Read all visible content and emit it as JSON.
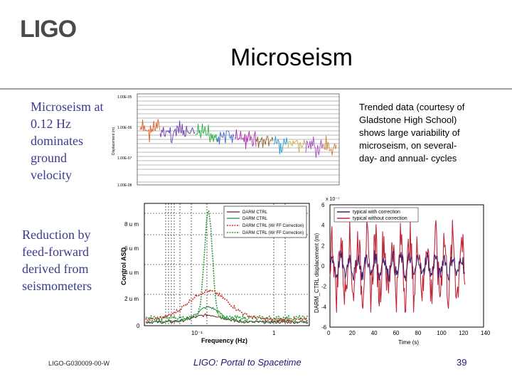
{
  "header": {
    "logo": "LIGO",
    "title": "Microseism"
  },
  "left_text": {
    "block1": "Microseism at 0.12 Hz dominates ground velocity",
    "block2": "Reduction by feed-forward derived from seismometers"
  },
  "note": "Trended data (courtesy of Gladstone High School) shows large variability of microseism, on several-day- and annual- cycles",
  "footer": {
    "doc_id": "LIGO-G030009-00-W",
    "center": "LIGO: Portal to Spacetime",
    "page": "39"
  },
  "chart_data": [
    {
      "type": "line",
      "y_tick_labels": [
        "1.00E-05",
        "1.00E-06",
        "1.00E-07",
        "1.00E-08"
      ],
      "ylabel": "Displacement (m)"
    },
    {
      "type": "line",
      "xlabel": "Frequency (Hz)",
      "ylabel": "Control ASD",
      "x_ticks": [
        "10⁻¹",
        "1"
      ],
      "y_ticks": [
        "0",
        "2 u m",
        "4 u m",
        "6 u m",
        "8 u m"
      ],
      "legend": [
        "DARM CTRL",
        "DARM CTRL",
        "DARM CTRL (W/ FF Correction)",
        "DARM CTRL (W/ FF Correction)"
      ],
      "legend_colors": [
        "#6a1f1f",
        "#1f8a3a",
        "#c8302a",
        "#2a9a3a"
      ]
    },
    {
      "type": "line",
      "xlabel": "Time (s)",
      "ylabel": "DARM_CTRL displacement (m)",
      "exponent": "x 10⁻⁷",
      "x_ticks": [
        "0",
        "20",
        "40",
        "60",
        "80",
        "100",
        "120",
        "140"
      ],
      "y_ticks": [
        "6",
        "4",
        "2",
        "0",
        "-2",
        "-4",
        "-6"
      ],
      "xlim": [
        0,
        140
      ],
      "ylim": [
        -6,
        6
      ],
      "series": [
        {
          "name": "typical with correction",
          "color": "#4a1f6a"
        },
        {
          "name": "typical without correction",
          "color": "#c0283a"
        }
      ]
    }
  ]
}
